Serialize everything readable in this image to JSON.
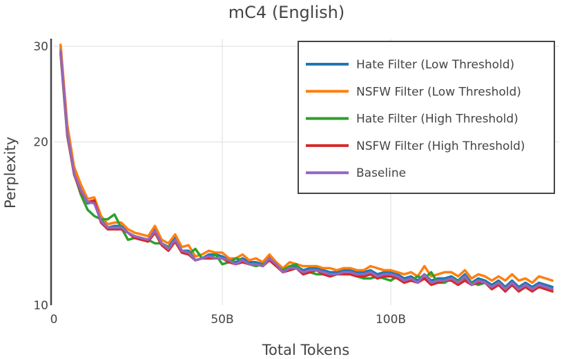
{
  "chart_data": {
    "type": "line",
    "title": "mC4 (English)",
    "xlabel": "Total Tokens",
    "ylabel": "Perplexity",
    "xlim": [
      0,
      150
    ],
    "ylim": [
      10,
      31
    ],
    "y_scale": "log",
    "grid": true,
    "legend_position": "top-right",
    "x_ticks": [
      {
        "value": 0,
        "label": "0"
      },
      {
        "value": 50,
        "label": "50B"
      },
      {
        "value": 100,
        "label": "100B"
      }
    ],
    "y_ticks": [
      {
        "value": 10,
        "label": "10"
      },
      {
        "value": 20,
        "label": "20"
      },
      {
        "value": 30,
        "label": "30"
      }
    ],
    "x": [
      2,
      4,
      6,
      8,
      10,
      12,
      14,
      16,
      18,
      20,
      22,
      24,
      26,
      28,
      30,
      32,
      34,
      36,
      38,
      40,
      42,
      44,
      46,
      48,
      50,
      52,
      54,
      56,
      58,
      60,
      62,
      64,
      66,
      68,
      70,
      72,
      74,
      76,
      78,
      80,
      82,
      84,
      86,
      88,
      90,
      92,
      94,
      96,
      98,
      100,
      102,
      104,
      106,
      108,
      110,
      112,
      114,
      116,
      118,
      120,
      122,
      124,
      126,
      128,
      130,
      132,
      134,
      136,
      138,
      140,
      142,
      144,
      146,
      148
    ],
    "series": [
      {
        "name": "Hate Filter (Low Threshold)",
        "color": "#1f77b4",
        "values": [
          29.8,
          21.0,
          17.7,
          16.4,
          15.4,
          15.5,
          14.5,
          13.9,
          14.0,
          14.0,
          13.6,
          13.4,
          13.3,
          13.2,
          13.8,
          13.0,
          12.8,
          13.3,
          12.6,
          12.6,
          12.1,
          12.2,
          12.4,
          12.4,
          12.3,
          12.1,
          12.0,
          12.2,
          12.0,
          12.0,
          11.9,
          12.3,
          11.9,
          11.5,
          11.8,
          11.8,
          11.6,
          11.7,
          11.7,
          11.6,
          11.5,
          11.5,
          11.6,
          11.6,
          11.5,
          11.5,
          11.6,
          11.4,
          11.5,
          11.5,
          11.4,
          11.2,
          11.3,
          11.1,
          11.4,
          11.1,
          11.2,
          11.2,
          11.3,
          11.1,
          11.4,
          11.0,
          11.2,
          11.1,
          10.9,
          11.1,
          10.8,
          11.1,
          10.8,
          11.0,
          10.8,
          11.0,
          10.9,
          10.8
        ]
      },
      {
        "name": "NSFW Filter (Low Threshold)",
        "color": "#ff7f0e",
        "values": [
          30.2,
          21.5,
          18.0,
          16.7,
          15.7,
          15.8,
          14.6,
          14.1,
          14.2,
          14.2,
          13.8,
          13.6,
          13.5,
          13.4,
          14.0,
          13.2,
          13.0,
          13.5,
          12.8,
          12.9,
          12.3,
          12.4,
          12.6,
          12.5,
          12.5,
          12.2,
          12.2,
          12.4,
          12.1,
          12.2,
          12.0,
          12.4,
          12.0,
          11.7,
          12.0,
          11.9,
          11.8,
          11.8,
          11.8,
          11.7,
          11.7,
          11.6,
          11.7,
          11.7,
          11.6,
          11.6,
          11.8,
          11.7,
          11.6,
          11.6,
          11.5,
          11.4,
          11.5,
          11.3,
          11.8,
          11.3,
          11.4,
          11.5,
          11.5,
          11.3,
          11.6,
          11.2,
          11.4,
          11.3,
          11.1,
          11.3,
          11.1,
          11.4,
          11.1,
          11.2,
          11.0,
          11.3,
          11.2,
          11.1
        ]
      },
      {
        "name": "Hate Filter (High Threshold)",
        "color": "#2ca02c",
        "values": [
          29.0,
          20.5,
          17.5,
          16.0,
          15.0,
          14.6,
          14.4,
          14.4,
          14.7,
          13.9,
          13.2,
          13.3,
          13.2,
          13.2,
          13.0,
          13.0,
          12.8,
          13.1,
          12.5,
          12.4,
          12.7,
          12.2,
          12.2,
          12.4,
          11.9,
          12.0,
          12.2,
          12.1,
          11.9,
          11.8,
          11.9,
          12.1,
          11.8,
          11.6,
          11.8,
          11.9,
          11.4,
          11.5,
          11.4,
          11.4,
          11.3,
          11.4,
          11.5,
          11.4,
          11.3,
          11.2,
          11.2,
          11.3,
          11.2,
          11.1,
          11.3,
          11.1,
          11.1,
          11.3,
          11.2,
          11.5,
          11.0,
          11.0,
          11.2,
          11.1,
          11.2,
          11.0,
          10.9,
          11.0,
          10.8,
          11.0,
          10.7,
          10.9,
          10.7,
          10.9,
          10.7,
          10.9,
          10.8,
          10.7
        ]
      },
      {
        "name": "NSFW Filter (High Threshold)",
        "color": "#d62728",
        "values": [
          29.3,
          20.6,
          17.4,
          16.2,
          15.5,
          15.6,
          14.2,
          13.8,
          13.8,
          13.8,
          13.6,
          13.3,
          13.2,
          13.1,
          13.6,
          12.9,
          12.6,
          13.1,
          12.5,
          12.4,
          12.1,
          12.2,
          12.2,
          12.2,
          12.2,
          12.0,
          11.9,
          12.0,
          11.9,
          11.9,
          11.8,
          12.1,
          11.8,
          11.5,
          11.6,
          11.7,
          11.4,
          11.5,
          11.6,
          11.4,
          11.3,
          11.4,
          11.4,
          11.4,
          11.3,
          11.3,
          11.4,
          11.2,
          11.3,
          11.3,
          11.2,
          11.0,
          11.1,
          11.0,
          11.2,
          10.9,
          11.0,
          11.1,
          11.1,
          10.9,
          11.1,
          10.9,
          11.0,
          11.0,
          10.7,
          10.9,
          10.6,
          10.9,
          10.6,
          10.8,
          10.6,
          10.8,
          10.7,
          10.6
        ]
      },
      {
        "name": "Baseline",
        "color": "#9467bd",
        "values": [
          29.4,
          20.8,
          17.5,
          16.3,
          15.5,
          15.4,
          14.3,
          13.9,
          13.9,
          13.9,
          13.6,
          13.4,
          13.3,
          13.2,
          13.7,
          13.0,
          12.7,
          13.2,
          12.6,
          12.5,
          12.1,
          12.2,
          12.3,
          12.2,
          12.2,
          12.1,
          11.9,
          12.1,
          11.9,
          11.9,
          11.8,
          12.2,
          11.9,
          11.5,
          11.7,
          11.7,
          11.5,
          11.6,
          11.6,
          11.5,
          11.4,
          11.4,
          11.5,
          11.5,
          11.4,
          11.4,
          11.5,
          11.3,
          11.4,
          11.4,
          11.3,
          11.1,
          11.2,
          11.0,
          11.4,
          11.0,
          11.1,
          11.1,
          11.2,
          11.0,
          11.3,
          10.9,
          11.1,
          11.0,
          10.8,
          11.0,
          10.7,
          11.0,
          10.7,
          10.9,
          10.7,
          10.9,
          10.8,
          10.7
        ]
      }
    ]
  }
}
